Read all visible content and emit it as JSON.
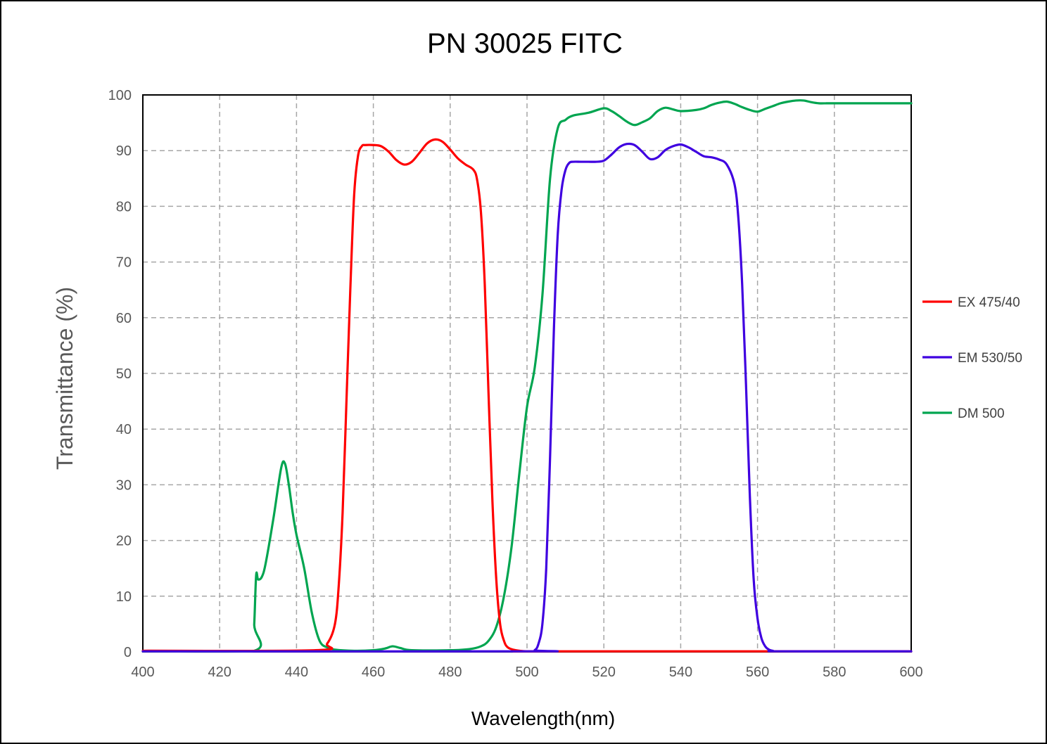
{
  "chart_data": {
    "type": "line",
    "title": "PN 30025  FITC",
    "xlabel": "Wavelength(nm)",
    "ylabel": "Transmittance (%)",
    "xlim": [
      400,
      600
    ],
    "ylim": [
      0,
      100
    ],
    "xticks": [
      "400",
      "420",
      "440",
      "460",
      "480",
      "500",
      "520",
      "540",
      "560",
      "580",
      "600"
    ],
    "yticks": [
      "0",
      "10",
      "20",
      "30",
      "40",
      "50",
      "60",
      "70",
      "80",
      "90",
      "100"
    ],
    "grid": true,
    "legend_position": "right",
    "series": [
      {
        "name": "EX 475/40",
        "color": "#ff0000",
        "x": [
          400,
          445,
          448,
          450,
          451,
          452,
          453,
          454,
          455,
          456,
          457,
          458,
          460,
          462,
          464,
          466,
          468,
          470,
          472,
          474,
          476,
          478,
          480,
          482,
          484,
          486,
          487,
          488,
          489,
          490,
          491,
          492,
          493,
          494,
          495,
          497,
          500,
          505,
          600
        ],
        "y": [
          0.2,
          0.3,
          1.5,
          5,
          12,
          25,
          45,
          65,
          82,
          89,
          90.8,
          91,
          91,
          90.8,
          89.8,
          88.3,
          87.5,
          88,
          89.6,
          91.3,
          92,
          91.6,
          90.2,
          88.6,
          87.5,
          86.6,
          84.8,
          79,
          66,
          46,
          27,
          13,
          5,
          2,
          0.8,
          0.3,
          0.1,
          0.1,
          0.1
        ]
      },
      {
        "name": "EM 530/50",
        "color": "#3f00e0",
        "x": [
          400,
          500,
          502,
          503,
          504,
          505,
          506,
          507,
          508,
          509,
          510,
          511,
          512,
          514,
          516,
          518,
          520,
          522,
          524,
          526,
          528,
          530,
          532,
          534,
          536,
          538,
          540,
          542,
          544,
          546,
          548,
          550,
          552,
          554,
          555,
          556,
          557,
          558,
          559,
          560,
          561,
          562,
          563,
          564,
          566,
          600
        ],
        "y": [
          0.1,
          0.1,
          0.3,
          1.5,
          5,
          15,
          35,
          58,
          75,
          83,
          86.5,
          87.8,
          88,
          88,
          88,
          88,
          88.2,
          89.3,
          90.6,
          91.2,
          91,
          89.8,
          88.5,
          88.8,
          90.1,
          90.8,
          91.1,
          90.6,
          89.8,
          89,
          88.8,
          88.4,
          87.5,
          84,
          78,
          66,
          48,
          28,
          13,
          6,
          2.5,
          1,
          0.4,
          0.2,
          0.1,
          0.1
        ]
      },
      {
        "name": "DM 500",
        "color": "#00a550",
        "x": [
          400,
          428.5,
          429,
          429.5,
          430,
          431,
          432,
          434,
          436,
          437,
          438,
          439,
          440,
          442,
          444,
          446,
          448,
          450,
          455,
          460,
          463,
          465,
          467,
          470,
          480,
          485,
          488,
          490,
          492,
          494,
          496,
          498,
          500,
          502,
          504,
          506,
          508,
          510,
          512,
          516,
          520,
          522,
          524,
          526,
          528,
          530,
          532,
          534,
          536,
          538,
          540,
          544,
          546,
          548,
          550,
          552,
          554,
          556,
          558,
          560,
          562,
          564,
          566,
          568,
          570,
          572,
          574,
          576,
          578,
          580,
          600
        ],
        "y": [
          0.1,
          0.1,
          5,
          13.8,
          13,
          13.5,
          16,
          24,
          33,
          33.8,
          30,
          25,
          21,
          15,
          7,
          2,
          0.8,
          0.4,
          0.2,
          0.3,
          0.6,
          1,
          0.7,
          0.3,
          0.3,
          0.5,
          1,
          2,
          4.5,
          10,
          19,
          32,
          44,
          51,
          64,
          85,
          94,
          95.5,
          96.3,
          96.8,
          97.6,
          97.1,
          96.2,
          95.2,
          94.6,
          95.1,
          95.8,
          97.1,
          97.7,
          97.4,
          97.1,
          97.3,
          97.6,
          98.2,
          98.6,
          98.8,
          98.4,
          97.8,
          97.3,
          97,
          97.5,
          98,
          98.5,
          98.8,
          99,
          99,
          98.7,
          98.5,
          98.5,
          98.5,
          98.5
        ]
      }
    ]
  }
}
